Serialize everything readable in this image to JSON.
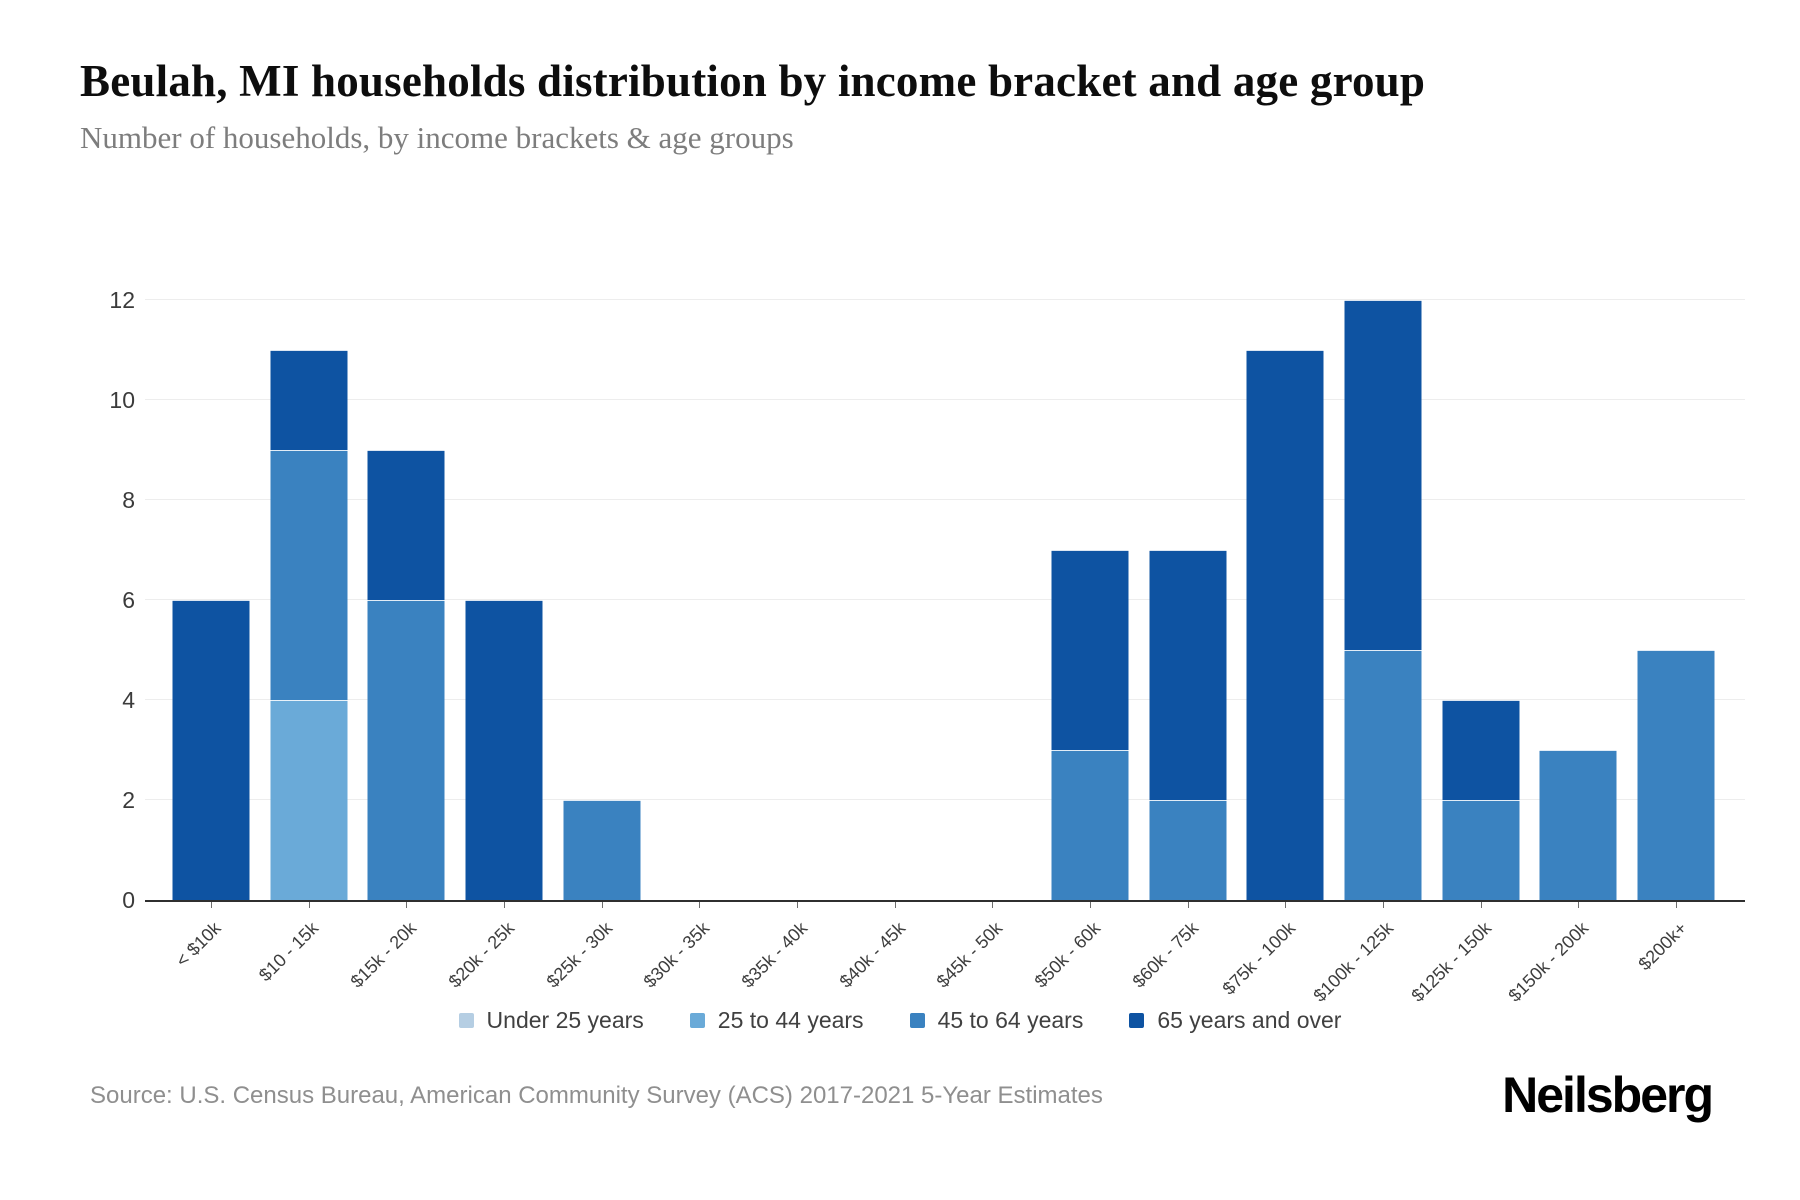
{
  "page": {
    "source": "Source: U.S. Census Bureau, American Community Survey (ACS) 2017-2021 5-Year Estimates",
    "brand": "Neilsberg"
  },
  "chart_data": {
    "type": "bar",
    "stacked": true,
    "title": "Beulah, MI households distribution by income bracket and age group",
    "subtitle": "Number of households, by income brackets & age groups",
    "xlabel": "",
    "ylabel": "",
    "ylim": [
      0,
      12
    ],
    "yticks": [
      0,
      2,
      4,
      6,
      8,
      10,
      12
    ],
    "grid": true,
    "legend_position": "bottom",
    "categories": [
      "< $10k",
      "$10 - 15k",
      "$15k - 20k",
      "$20k - 25k",
      "$25k - 30k",
      "$30k - 35k",
      "$35k - 40k",
      "$40k - 45k",
      "$45k - 50k",
      "$50k - 60k",
      "$60k - 75k",
      "$75k - 100k",
      "$100k - 125k",
      "$125k - 150k",
      "$150k - 200k",
      "$200k+"
    ],
    "series": [
      {
        "name": "Under 25 years",
        "color": "#b5cee3",
        "values": [
          0,
          0,
          0,
          0,
          0,
          0,
          0,
          0,
          0,
          0,
          0,
          0,
          0,
          0,
          0,
          0
        ]
      },
      {
        "name": "25 to 44 years",
        "color": "#6aaad8",
        "values": [
          0,
          4,
          0,
          0,
          0,
          0,
          0,
          0,
          0,
          0,
          0,
          0,
          0,
          0,
          0,
          0
        ]
      },
      {
        "name": "45 to 64 years",
        "color": "#3a82c0",
        "values": [
          0,
          5,
          6,
          0,
          2,
          0,
          0,
          0,
          0,
          3,
          2,
          0,
          5,
          2,
          3,
          5
        ]
      },
      {
        "name": "65 years and over",
        "color": "#0e53a2",
        "values": [
          6,
          2,
          3,
          6,
          0,
          0,
          0,
          0,
          0,
          4,
          5,
          11,
          7,
          2,
          0,
          0
        ]
      }
    ],
    "totals": [
      6,
      11,
      9,
      6,
      2,
      0,
      0,
      0,
      0,
      7,
      7,
      11,
      12,
      4,
      3,
      5
    ]
  }
}
